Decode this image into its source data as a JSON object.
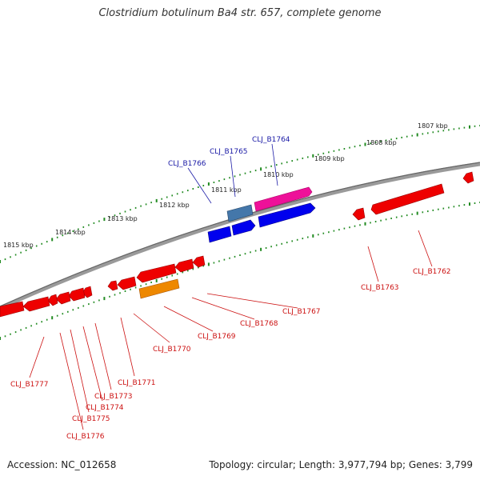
{
  "title": "Clostridium botulinum Ba4 str. 657, complete genome",
  "footer": {
    "accession": "Accession: NC_012658",
    "summary": "Topology: circular; Length: 3,977,794 bp; Genes: 3,799"
  },
  "colors": {
    "backbone": "#888888",
    "tick": "#228B22",
    "gene_red": "#ee0000",
    "gene_blue": "#0000ee",
    "gene_magenta": "#ee1199",
    "gene_steelblue": "#4477aa",
    "gene_orange": "#ee8800",
    "label_blue": "#1a1aa6",
    "label_red": "#cc1111"
  },
  "kbp_labels": [
    "1807 kbp",
    "1808 kbp",
    "1809 kbp",
    "1810 kbp",
    "1811 kbp",
    "1812 kbp",
    "1813 kbp",
    "1814 kbp",
    "1815 kbp"
  ],
  "genes_top": [
    "CLJ_B1764",
    "CLJ_B1765",
    "CLJ_B1766"
  ],
  "genes_bottom": [
    "CLJ_B1762",
    "CLJ_B1763",
    "CLJ_B1767",
    "CLJ_B1768",
    "CLJ_B1769",
    "CLJ_B1770",
    "CLJ_B1771",
    "CLJ_B1773",
    "CLJ_B1774",
    "CLJ_B1775",
    "CLJ_B1776",
    "CLJ_B1777"
  ]
}
